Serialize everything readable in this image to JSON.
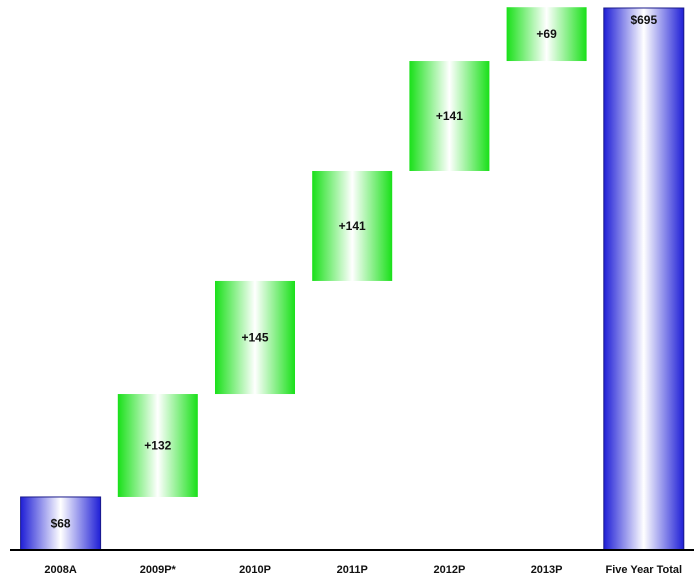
{
  "chart_data": {
    "type": "bar",
    "subtype": "waterfall",
    "categories": [
      "2008A",
      "2009P*",
      "2010P",
      "2011P",
      "2012P",
      "2013P",
      "Five Year Total"
    ],
    "values": [
      68,
      132,
      145,
      141,
      141,
      69,
      695
    ],
    "kinds": [
      "total",
      "increment",
      "increment",
      "increment",
      "increment",
      "increment",
      "total"
    ],
    "labels": [
      "$68",
      "+132",
      "+145",
      "+141",
      "+141",
      "+69",
      "$695"
    ],
    "ylim": [
      0,
      695
    ],
    "grid": false,
    "legend": "none",
    "colors": {
      "total": "#1f1fd6",
      "increment": "#19e019",
      "axis": "#000000"
    }
  }
}
